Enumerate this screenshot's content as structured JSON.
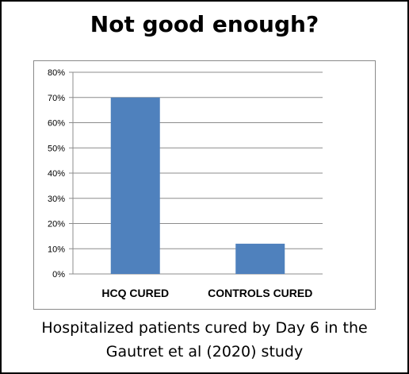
{
  "title": "Not good enough?",
  "caption": {
    "line1": "Hospitalized patients cured by Day 6 in the",
    "line2": "Gautret et al (2020) study"
  },
  "colors": {
    "bar": "#4f81bd",
    "grid": "#8c8c8c",
    "axis": "#8c8c8c",
    "frame": "#000000"
  },
  "chart_data": {
    "type": "bar",
    "categories": [
      "HCQ CURED",
      "CONTROLS CURED"
    ],
    "values": [
      70,
      12
    ],
    "unit": "%",
    "title": "Not good enough?",
    "xlabel": "",
    "ylabel": "",
    "ylim": [
      0,
      80
    ],
    "yticks": [
      "0%",
      "10%",
      "20%",
      "30%",
      "40%",
      "50%",
      "60%",
      "70%",
      "80%"
    ],
    "grid": true,
    "legend": "none"
  }
}
